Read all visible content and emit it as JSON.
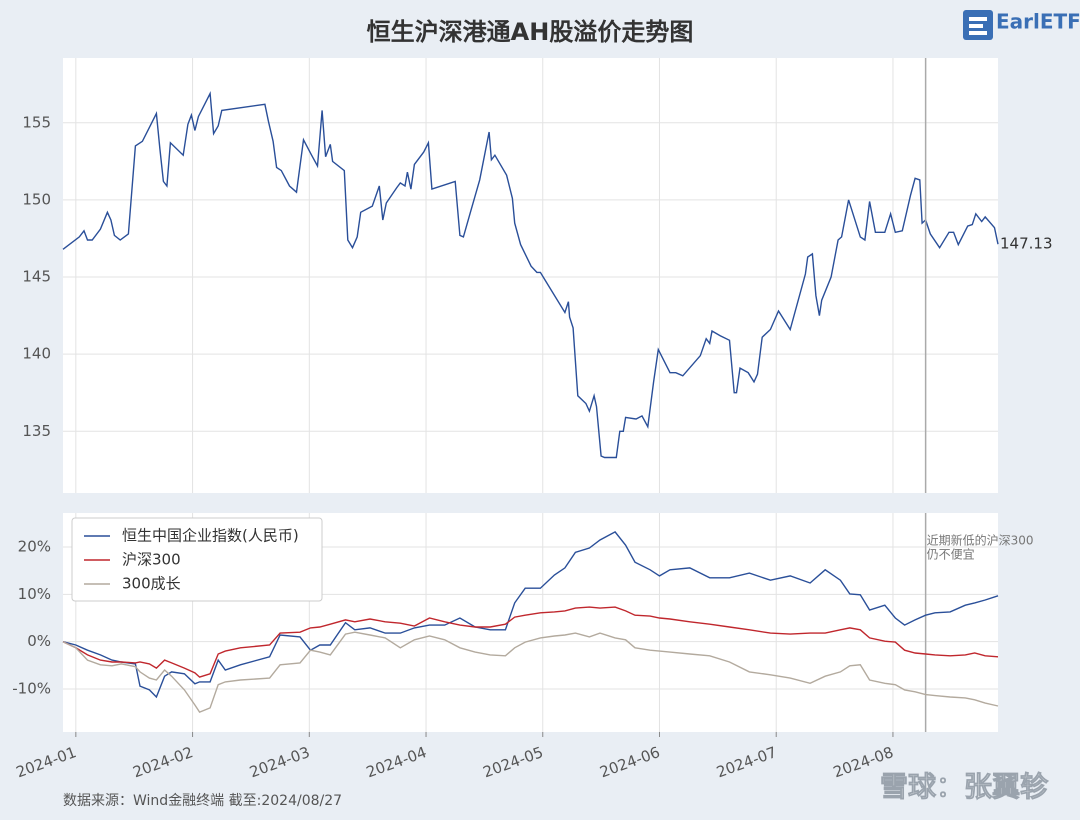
{
  "title": "恒生沪深港通AH股溢价走势图",
  "logo": "EarlETF",
  "source": "数据来源：Wind金融终端 截至:2024/08/27",
  "watermark": "雪球：张翼轸",
  "chart_data": [
    {
      "type": "line",
      "xlim": [
        -0.11,
        7.9
      ],
      "ylim": [
        131,
        159.2
      ],
      "yticks": [
        135,
        140,
        145,
        150,
        155
      ],
      "grid": true,
      "x": [
        -0.11,
        0.03,
        0.07,
        0.1,
        0.14,
        0.21,
        0.27,
        0.3,
        0.33,
        0.38,
        0.45,
        0.51,
        0.57,
        0.63,
        0.69,
        0.72,
        0.75,
        0.78,
        0.81,
        0.92,
        0.96,
        0.99,
        1.02,
        1.05,
        1.15,
        1.18,
        1.22,
        1.25,
        1.62,
        1.65,
        1.69,
        1.72,
        1.76,
        1.83,
        1.89,
        1.95,
        2.02,
        2.07,
        2.11,
        2.14,
        2.18,
        2.2,
        2.3,
        2.33,
        2.37,
        2.41,
        2.44,
        2.54,
        2.6,
        2.63,
        2.66,
        2.75,
        2.78,
        2.82,
        2.84,
        2.87,
        2.9,
        2.98,
        3.02,
        3.05,
        3.25,
        3.29,
        3.32,
        3.38,
        3.46,
        3.54,
        3.56,
        3.59,
        3.69,
        3.74,
        3.76,
        3.81,
        3.9,
        3.95,
        3.98,
        4.02,
        4.19,
        4.22,
        4.23,
        4.26,
        4.3,
        4.37,
        4.4,
        4.44,
        4.46,
        4.5,
        4.53,
        4.63,
        4.66,
        4.69,
        4.71,
        4.8,
        4.85,
        4.9,
        4.95,
        4.99,
        5.09,
        5.14,
        5.2,
        5.35,
        5.4,
        5.43,
        5.45,
        5.52,
        5.6,
        5.64,
        5.66,
        5.69,
        5.76,
        5.81,
        5.84,
        5.88,
        5.95,
        6.02,
        6.12,
        6.25,
        6.27,
        6.31,
        6.34,
        6.37,
        6.39,
        6.47,
        6.53,
        6.56,
        6.62,
        6.72,
        6.76,
        6.8,
        6.85,
        6.93,
        6.98,
        7.02,
        7.08,
        7.15,
        7.19,
        7.23,
        7.25,
        7.28,
        7.32,
        7.4,
        7.48,
        7.52,
        7.56,
        7.64,
        7.68,
        7.71,
        7.76,
        7.79,
        7.87,
        7.9
      ],
      "series": [
        {
          "color": "#2a4f99",
          "values": [
            146.8,
            147.6,
            148.0,
            147.4,
            147.4,
            148.1,
            149.2,
            148.7,
            147.7,
            147.4,
            147.8,
            153.5,
            153.8,
            154.7,
            155.6,
            153.3,
            151.2,
            150.9,
            153.7,
            152.9,
            154.9,
            155.5,
            154.5,
            155.4,
            156.9,
            154.3,
            154.8,
            155.8,
            156.2,
            155.1,
            153.8,
            152.1,
            151.9,
            150.9,
            150.5,
            153.9,
            152.9,
            152.2,
            155.8,
            152.8,
            153.6,
            152.5,
            151.9,
            147.4,
            146.9,
            147.6,
            149.2,
            149.6,
            150.9,
            148.7,
            149.8,
            150.8,
            151.1,
            150.9,
            151.8,
            150.7,
            152.3,
            153.1,
            153.7,
            150.7,
            151.2,
            147.7,
            147.6,
            149.2,
            151.3,
            154.4,
            152.6,
            152.9,
            151.6,
            150.1,
            148.5,
            147.1,
            145.7,
            145.3,
            145.3,
            144.8,
            142.7,
            143.4,
            142.4,
            141.7,
            137.3,
            136.8,
            136.3,
            137.3,
            136.6,
            133.4,
            133.3,
            133.3,
            135.0,
            135.0,
            135.9,
            135.8,
            136.0,
            135.3,
            138.2,
            140.3,
            138.8,
            138.8,
            138.6,
            139.9,
            141.0,
            140.7,
            141.5,
            141.2,
            140.9,
            137.5,
            137.5,
            139.1,
            138.8,
            138.2,
            138.7,
            141.1,
            141.6,
            142.8,
            141.6,
            145.2,
            146.3,
            146.5,
            143.8,
            142.5,
            143.5,
            145.0,
            147.4,
            147.6,
            150.0,
            147.6,
            147.4,
            149.9,
            147.9,
            147.9,
            149.1,
            147.9,
            148.0,
            150.3,
            151.4,
            151.3,
            148.5,
            148.7,
            147.8,
            146.9,
            147.9,
            147.9,
            147.1,
            148.3,
            148.4,
            149.1,
            148.6,
            148.9,
            148.2,
            147.13
          ]
        }
      ]
    },
    {
      "type": "line",
      "xlim": [
        -0.11,
        7.9
      ],
      "ylim": [
        -19.1,
        27.2
      ],
      "yticks": [
        {
          "value": -10,
          "label": "-10%"
        },
        {
          "value": 0,
          "label": "0%"
        },
        {
          "value": 10,
          "label": "10%"
        },
        {
          "value": 20,
          "label": "20%"
        }
      ],
      "xticks": [
        {
          "value": 0,
          "label": "2024-01"
        },
        {
          "value": 1,
          "label": "2024-02"
        },
        {
          "value": 2,
          "label": "2024-03"
        },
        {
          "value": 3,
          "label": "2024-04"
        },
        {
          "value": 4,
          "label": "2024-05"
        },
        {
          "value": 5,
          "label": "2024-06"
        },
        {
          "value": 6,
          "label": "2024-07"
        },
        {
          "value": 7,
          "label": "2024-08"
        }
      ],
      "grid": true,
      "legend": "upper left",
      "vline": 7.28,
      "annotation": [
        "近期新低的沪深300",
        "仍不便宜"
      ],
      "x": [
        -0.11,
        0,
        0.1,
        0.21,
        0.31,
        0.39,
        0.51,
        0.55,
        0.63,
        0.69,
        0.76,
        0.82,
        0.93,
        1.02,
        1.06,
        1.15,
        1.22,
        1.28,
        1.41,
        1.66,
        1.75,
        1.92,
        2.01,
        2.09,
        2.18,
        2.31,
        2.39,
        2.52,
        2.65,
        2.78,
        2.9,
        3.03,
        3.16,
        3.29,
        3.42,
        3.55,
        3.68,
        3.76,
        3.85,
        3.98,
        4.1,
        4.19,
        4.28,
        4.4,
        4.49,
        4.62,
        4.71,
        4.79,
        4.92,
        5.0,
        5.09,
        5.26,
        5.43,
        5.6,
        5.77,
        5.95,
        6.12,
        6.29,
        6.42,
        6.55,
        6.63,
        6.72,
        6.8,
        6.93,
        7.02,
        7.1,
        7.19,
        7.28,
        7.36,
        7.49,
        7.62,
        7.7,
        7.79,
        7.9
      ],
      "series": [
        {
          "name": "恒生中国企业指数(人民币)",
          "color": "#2a4f99",
          "values": [
            0,
            -0.7,
            -1.8,
            -2.8,
            -3.9,
            -4.3,
            -4.7,
            -9.4,
            -10.2,
            -11.7,
            -7.3,
            -6.4,
            -6.8,
            -8.9,
            -8.5,
            -8.5,
            -3.9,
            -6.0,
            -4.9,
            -3.2,
            1.4,
            1.0,
            -1.8,
            -0.7,
            -0.7,
            4.0,
            2.5,
            2.9,
            1.8,
            1.8,
            2.9,
            3.5,
            3.5,
            5.0,
            3.1,
            2.5,
            2.5,
            8.2,
            11.3,
            11.3,
            14.1,
            15.6,
            18.9,
            19.8,
            21.5,
            23.2,
            20.4,
            16.8,
            15.2,
            13.9,
            15.2,
            15.6,
            13.5,
            13.5,
            14.5,
            13.0,
            13.9,
            12.4,
            15.2,
            13.0,
            10.1,
            9.9,
            6.7,
            7.7,
            5.0,
            3.5,
            4.6,
            5.6,
            6.1,
            6.3,
            7.7,
            8.2,
            8.8,
            9.7
          ]
        },
        {
          "name": "沪深300",
          "color": "#c0272d",
          "values": [
            0,
            -1.3,
            -2.8,
            -3.9,
            -4.3,
            -4.3,
            -4.5,
            -4.3,
            -4.7,
            -5.6,
            -3.9,
            -4.5,
            -5.6,
            -6.6,
            -7.5,
            -6.8,
            -2.6,
            -2.0,
            -1.3,
            -0.7,
            1.8,
            2.0,
            2.9,
            3.1,
            3.7,
            4.6,
            4.2,
            4.8,
            4.2,
            3.9,
            3.3,
            5.0,
            4.2,
            3.5,
            3.1,
            3.1,
            3.7,
            5.2,
            5.6,
            6.1,
            6.3,
            6.5,
            7.1,
            7.3,
            7.1,
            7.3,
            6.5,
            5.6,
            5.4,
            5.0,
            4.8,
            4.2,
            3.7,
            3.1,
            2.5,
            1.8,
            1.6,
            1.8,
            1.8,
            2.5,
            2.9,
            2.5,
            0.8,
            0.1,
            -0.1,
            -1.8,
            -2.4,
            -2.6,
            -2.8,
            -3.0,
            -2.8,
            -2.4,
            -3.0,
            -3.2
          ]
        },
        {
          "name": "300成长",
          "color": "#b3aa9e",
          "values": [
            0,
            -1.3,
            -3.9,
            -4.9,
            -5.1,
            -4.7,
            -5.3,
            -6.4,
            -7.7,
            -8.1,
            -6.0,
            -7.3,
            -10.2,
            -13.4,
            -14.9,
            -14.0,
            -9.1,
            -8.5,
            -8.1,
            -7.7,
            -4.9,
            -4.5,
            -1.8,
            -2.2,
            -2.8,
            1.6,
            2.0,
            1.4,
            0.8,
            -1.3,
            0.4,
            1.2,
            0.4,
            -1.3,
            -2.2,
            -2.8,
            -3.0,
            -1.3,
            -0.1,
            0.8,
            1.2,
            1.4,
            1.8,
            1.0,
            1.8,
            0.8,
            0.4,
            -1.3,
            -1.8,
            -2.0,
            -2.2,
            -2.6,
            -3.0,
            -4.3,
            -6.4,
            -7.0,
            -7.7,
            -8.8,
            -7.3,
            -6.4,
            -5.1,
            -4.9,
            -8.1,
            -8.8,
            -9.1,
            -10.2,
            -10.6,
            -11.2,
            -11.4,
            -11.7,
            -11.9,
            -12.3,
            -13.0,
            -13.6
          ]
        }
      ]
    }
  ]
}
